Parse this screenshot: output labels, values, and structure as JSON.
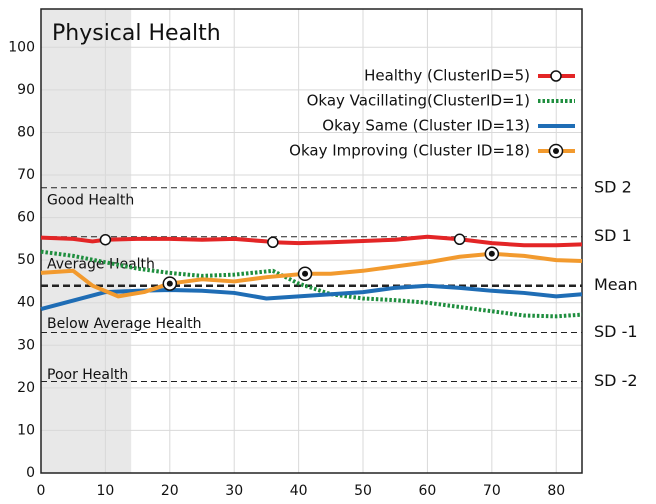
{
  "chart_data": {
    "type": "line",
    "title": "Physical Health",
    "xlim": [
      0,
      84
    ],
    "ylim": [
      0,
      109
    ],
    "xticks": [
      0,
      10,
      20,
      30,
      40,
      50,
      60,
      70,
      80
    ],
    "yticks": [
      0,
      10,
      20,
      30,
      40,
      50,
      60,
      70,
      80,
      90,
      100
    ],
    "grid": true,
    "legend": "upper right",
    "shaded_x": [
      0,
      14
    ],
    "reference_lines": [
      {
        "label": "SD 2",
        "value": 67,
        "region": "Good Health",
        "region_y": 64
      },
      {
        "label": "SD 1",
        "value": 55.5,
        "region": "Average Health",
        "region_y": 49
      },
      {
        "label": "Mean",
        "value": 44,
        "region": "Below Average Health",
        "region_y": 35
      },
      {
        "label": "SD -1",
        "value": 33,
        "region": "Poor Health",
        "region_y": 23
      },
      {
        "label": "SD -2",
        "value": 21.5
      }
    ],
    "series": [
      {
        "name": "Healthy (ClusterID=5)",
        "color": "#e32526",
        "style": "solid",
        "marker": "open",
        "marker_x": [
          10,
          36,
          65
        ],
        "x": [
          0,
          5,
          8,
          10,
          15,
          20,
          25,
          30,
          35,
          36,
          40,
          45,
          50,
          55,
          60,
          65,
          70,
          75,
          80,
          84
        ],
        "values": [
          55.3,
          55,
          54.4,
          54.8,
          55,
          55,
          54.8,
          55,
          54.4,
          54.2,
          54,
          54.2,
          54.5,
          54.8,
          55.5,
          54.9,
          54,
          53.5,
          53.5,
          53.7
        ]
      },
      {
        "name": "Okay Vacillating(ClusterID=1)",
        "color": "#1e8e3e",
        "style": "dotted",
        "x": [
          0,
          5,
          10,
          15,
          20,
          25,
          30,
          36,
          40,
          45,
          50,
          55,
          60,
          65,
          70,
          75,
          80,
          84
        ],
        "values": [
          52,
          51,
          49.5,
          48,
          47,
          46.3,
          46.6,
          47.5,
          44.5,
          42,
          41,
          40.6,
          40,
          39,
          38,
          37,
          36.8,
          37.2
        ]
      },
      {
        "name": "Okay Same (Cluster ID=13)",
        "color": "#1f6db5",
        "style": "solid",
        "x": [
          0,
          5,
          10,
          15,
          20,
          25,
          30,
          35,
          40,
          45,
          50,
          55,
          60,
          65,
          70,
          75,
          80,
          84
        ],
        "values": [
          38.5,
          40.5,
          42.5,
          42.8,
          43,
          42.8,
          42.3,
          41,
          41.5,
          42,
          42.5,
          43.5,
          44,
          43.5,
          42.8,
          42.3,
          41.5,
          42
        ]
      },
      {
        "name": "Okay Improving (Cluster ID=18)",
        "color": "#f29a2e",
        "style": "solid",
        "marker": "dot",
        "marker_x": [
          20,
          41,
          70
        ],
        "x": [
          0,
          5,
          8,
          12,
          16,
          20,
          25,
          30,
          35,
          41,
          45,
          50,
          55,
          60,
          65,
          70,
          75,
          80,
          84
        ],
        "values": [
          47,
          47.5,
          44,
          41.5,
          42.5,
          44.5,
          45.5,
          45,
          46,
          46.8,
          46.8,
          47.5,
          48.5,
          49.5,
          50.8,
          51.5,
          51,
          50,
          49.8
        ]
      }
    ]
  }
}
